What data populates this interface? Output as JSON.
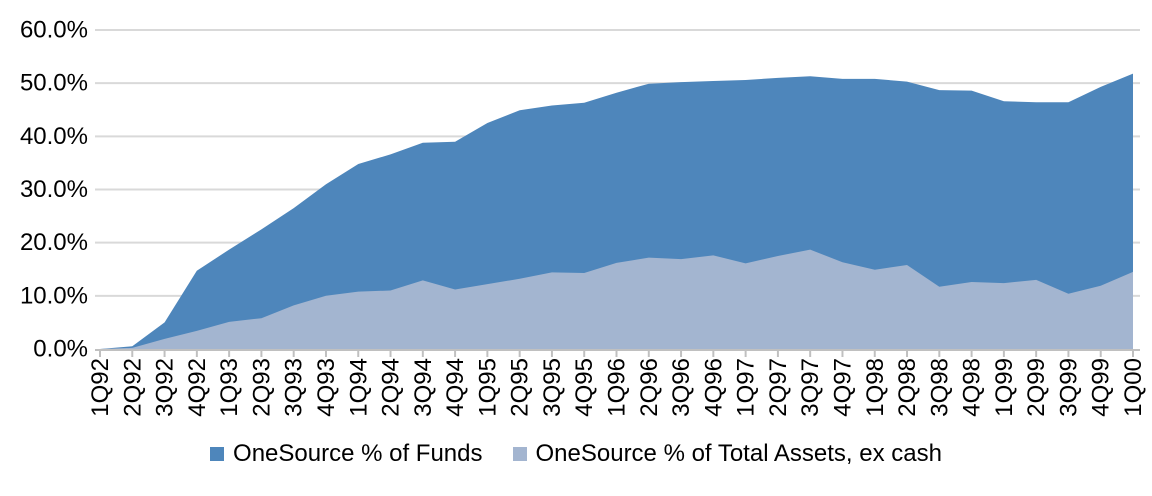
{
  "chart_data": {
    "type": "area",
    "mode": "overlapping",
    "title": "",
    "xlabel": "",
    "ylabel": "",
    "categories": [
      "1Q92",
      "2Q92",
      "3Q92",
      "4Q92",
      "1Q93",
      "2Q93",
      "3Q93",
      "4Q93",
      "1Q94",
      "2Q94",
      "3Q94",
      "4Q94",
      "1Q95",
      "2Q95",
      "3Q95",
      "4Q95",
      "1Q96",
      "2Q96",
      "3Q96",
      "4Q96",
      "1Q97",
      "2Q97",
      "3Q97",
      "4Q97",
      "1Q98",
      "2Q98",
      "3Q98",
      "4Q98",
      "1Q99",
      "2Q99",
      "3Q99",
      "4Q99",
      "1Q00"
    ],
    "series": [
      {
        "name": "OneSource % of Funds",
        "color": "#4e86bb",
        "values": [
          0.0,
          0.5,
          5.0,
          14.7,
          18.7,
          22.5,
          26.5,
          31.0,
          34.8,
          36.6,
          38.8,
          39.0,
          42.5,
          44.9,
          45.8,
          46.3,
          48.2,
          49.9,
          50.2,
          50.4,
          50.6,
          51.0,
          51.3,
          50.8,
          50.8,
          50.3,
          48.7,
          48.6,
          46.6,
          46.4,
          46.4,
          49.3,
          51.8
        ]
      },
      {
        "name": "OneSource % of Total Assets, ex cash",
        "color": "#a3b5d0",
        "values": [
          0.0,
          0.2,
          1.9,
          3.4,
          5.1,
          5.8,
          8.2,
          10.0,
          10.8,
          11.0,
          12.9,
          11.2,
          12.2,
          13.2,
          14.4,
          14.3,
          16.2,
          17.2,
          16.9,
          17.6,
          16.1,
          17.5,
          18.7,
          16.3,
          14.9,
          15.8,
          11.7,
          12.6,
          12.4,
          13.0,
          10.4,
          11.9,
          14.5
        ]
      }
    ],
    "y_axis": {
      "min": 0,
      "max": 60,
      "step": 10,
      "tick_labels": [
        "0.0%",
        "10.0%",
        "20.0%",
        "30.0%",
        "40.0%",
        "50.0%",
        "60.0%"
      ]
    },
    "grid": true,
    "legend_position": "bottom",
    "colors": {
      "gridline": "#d9d9d9",
      "axis_line": "#c0c0c0",
      "tick_mark": "#c0c0c0",
      "label_text": "#000000",
      "background": "#ffffff"
    }
  }
}
